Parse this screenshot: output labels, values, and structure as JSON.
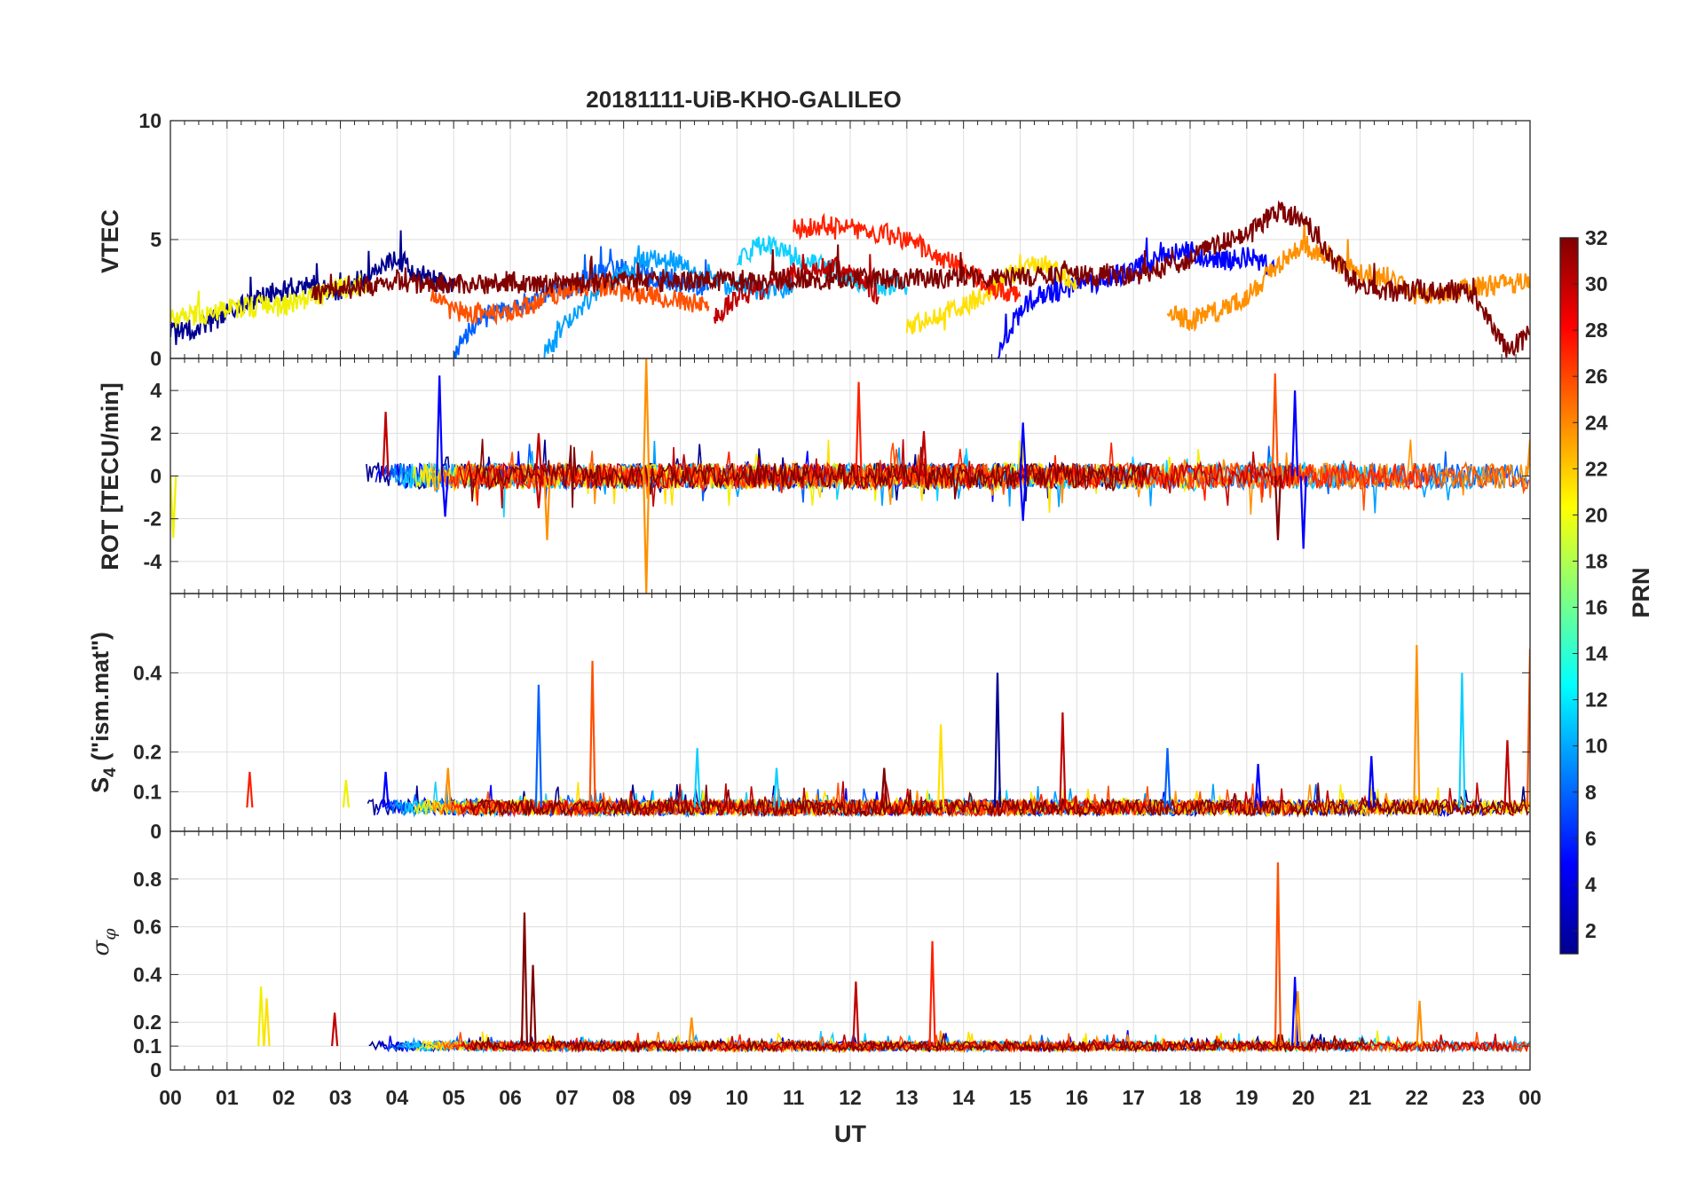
{
  "chart_data": {
    "type": "line",
    "title": "20181111-UiB-KHO-GALILEO",
    "xlabel": "UT",
    "x_tick_labels": [
      "00",
      "01",
      "02",
      "03",
      "04",
      "05",
      "06",
      "07",
      "08",
      "09",
      "10",
      "11",
      "12",
      "13",
      "14",
      "15",
      "16",
      "17",
      "18",
      "19",
      "20",
      "21",
      "22",
      "23",
      "00"
    ],
    "xlim": [
      0,
      24
    ],
    "grid": true,
    "panels": [
      {
        "ylabel": "VTEC",
        "ylim": [
          0,
          10
        ],
        "yticks": [
          0,
          5,
          10
        ],
        "series": [
          {
            "prn": 2,
            "color": "#00008f",
            "points": [
              [
                0,
                1.1
              ],
              [
                0.5,
                1.3
              ],
              [
                1,
                1.9
              ],
              [
                1.5,
                2.5
              ],
              [
                2,
                2.9
              ],
              [
                2.5,
                3.1
              ],
              [
                3,
                2.7
              ],
              [
                3.5,
                3.6
              ],
              [
                4,
                4.2
              ],
              [
                4.5,
                3.4
              ],
              [
                5,
                3.0
              ]
            ]
          },
          {
            "prn": 5,
            "color": "#0000ff",
            "points": [
              [
                14.6,
                0.1
              ],
              [
                14.9,
                1.6
              ],
              [
                15.2,
                2.5
              ],
              [
                15.6,
                2.8
              ],
              [
                16,
                3.1
              ],
              [
                16.5,
                3.3
              ],
              [
                17,
                3.7
              ],
              [
                17.5,
                4.3
              ],
              [
                18,
                4.5
              ],
              [
                18.5,
                4.1
              ],
              [
                19,
                4.3
              ],
              [
                19.5,
                3.8
              ]
            ]
          },
          {
            "prn": 8,
            "color": "#0060ff",
            "points": [
              [
                5,
                0.1
              ],
              [
                5.4,
                1.6
              ],
              [
                6,
                2.1
              ],
              [
                6.5,
                2.6
              ],
              [
                7,
                2.9
              ],
              [
                7.5,
                3.6
              ],
              [
                8,
                3.8
              ],
              [
                8.5,
                3.4
              ],
              [
                9,
                3.2
              ],
              [
                9.5,
                3.0
              ]
            ]
          },
          {
            "prn": 10,
            "color": "#00a0ff",
            "points": [
              [
                6.6,
                0.1
              ],
              [
                7,
                1.5
              ],
              [
                7.5,
                2.8
              ],
              [
                8,
                3.6
              ],
              [
                8.5,
                4.3
              ],
              [
                9,
                4.0
              ],
              [
                9.5,
                3.3
              ],
              [
                10,
                3.0
              ],
              [
                10.5,
                2.9
              ],
              [
                11,
                3.0
              ]
            ]
          },
          {
            "prn": 12,
            "color": "#10d0ff",
            "points": [
              [
                10,
                4.1
              ],
              [
                10.5,
                4.9
              ],
              [
                11,
                4.3
              ],
              [
                11.5,
                3.9
              ],
              [
                12,
                3.3
              ],
              [
                12.5,
                3.1
              ],
              [
                13,
                3.0
              ]
            ]
          },
          {
            "prn": 20,
            "color": "#f0f000",
            "points": [
              [
                0,
                1.6
              ],
              [
                0.5,
                1.8
              ],
              [
                1,
                2.1
              ],
              [
                1.5,
                2.2
              ],
              [
                2,
                2.2
              ],
              [
                2.5,
                2.6
              ],
              [
                3,
                3.0
              ],
              [
                3.5,
                3.1
              ]
            ]
          },
          {
            "prn": 21,
            "color": "#ffe000",
            "points": [
              [
                13,
                1.2
              ],
              [
                13.5,
                1.9
              ],
              [
                14,
                2.2
              ],
              [
                14.5,
                2.9
              ],
              [
                15,
                3.8
              ],
              [
                15.5,
                3.9
              ],
              [
                16,
                3.1
              ]
            ]
          },
          {
            "prn": 23,
            "color": "#ff9000",
            "points": [
              [
                17.6,
                2.0
              ],
              [
                18,
                1.6
              ],
              [
                18.5,
                2.0
              ],
              [
                19,
                2.6
              ],
              [
                19.5,
                3.8
              ],
              [
                20,
                4.8
              ],
              [
                20.5,
                4.1
              ],
              [
                21,
                3.6
              ],
              [
                21.5,
                3.4
              ],
              [
                22,
                2.6
              ],
              [
                22.5,
                2.7
              ],
              [
                23,
                3.0
              ],
              [
                23.5,
                3.1
              ],
              [
                24,
                3.2
              ]
            ]
          },
          {
            "prn": 25,
            "color": "#ff5000",
            "points": [
              [
                4.6,
                2.5
              ],
              [
                5,
                2.0
              ],
              [
                5.5,
                1.9
              ],
              [
                6,
                2.0
              ],
              [
                6.5,
                2.4
              ],
              [
                7,
                2.9
              ],
              [
                7.5,
                3.1
              ],
              [
                8,
                2.8
              ],
              [
                8.5,
                2.6
              ],
              [
                9,
                2.4
              ],
              [
                9.5,
                2.2
              ]
            ]
          },
          {
            "prn": 27,
            "color": "#ff2000",
            "points": [
              [
                11,
                5.4
              ],
              [
                11.5,
                5.6
              ],
              [
                12,
                5.5
              ],
              [
                12.5,
                5.3
              ],
              [
                13,
                5.0
              ],
              [
                13.5,
                4.4
              ],
              [
                14,
                3.8
              ],
              [
                14.5,
                3.0
              ],
              [
                15,
                2.6
              ]
            ]
          },
          {
            "prn": 30,
            "color": "#c00000",
            "points": [
              [
                9.6,
                1.8
              ],
              [
                10,
                2.5
              ],
              [
                10.5,
                3.0
              ],
              [
                11,
                3.6
              ],
              [
                11.5,
                3.9
              ],
              [
                12,
                3.7
              ],
              [
                12.5,
                2.6
              ]
            ]
          },
          {
            "prn": 32,
            "color": "#800000",
            "points": [
              [
                2.5,
                2.6
              ],
              [
                3,
                2.9
              ],
              [
                3.5,
                3.0
              ],
              [
                4,
                3.3
              ],
              [
                4.5,
                3.1
              ],
              [
                17,
                3.5
              ],
              [
                17.5,
                3.8
              ],
              [
                18,
                4.2
              ],
              [
                18.5,
                4.8
              ],
              [
                19,
                5.1
              ],
              [
                19.5,
                6.2
              ],
              [
                20,
                5.9
              ],
              [
                20.5,
                4.2
              ],
              [
                21,
                3.1
              ],
              [
                21.5,
                2.8
              ],
              [
                22,
                2.9
              ],
              [
                23,
                2.7
              ],
              [
                23.6,
                0.3
              ],
              [
                24,
                1.0
              ]
            ]
          }
        ]
      },
      {
        "ylabel": "ROT [TECU/min]",
        "ylim": [
          -5.5,
          5.5
        ],
        "yticks": [
          -4,
          -2,
          0,
          2,
          4
        ],
        "spikes": [
          {
            "t": 0.05,
            "v": -2.9,
            "color": "#f0f000"
          },
          {
            "t": 3.8,
            "v": 3.0,
            "color": "#c00000"
          },
          {
            "t": 4.75,
            "v": 4.7,
            "color": "#0000ff"
          },
          {
            "t": 4.85,
            "v": -1.9,
            "color": "#0000ff"
          },
          {
            "t": 6.5,
            "v": 2.0,
            "color": "#c00000"
          },
          {
            "t": 6.5,
            "v": -1.5,
            "color": "#c00000"
          },
          {
            "t": 6.65,
            "v": -3.0,
            "color": "#ff9000"
          },
          {
            "t": 8.4,
            "v": 5.5,
            "color": "#ff9000"
          },
          {
            "t": 8.4,
            "v": -5.5,
            "color": "#ff9000"
          },
          {
            "t": 12.15,
            "v": 4.4,
            "color": "#ff2000"
          },
          {
            "t": 13.3,
            "v": 2.1,
            "color": "#c00000"
          },
          {
            "t": 15.05,
            "v": 2.5,
            "color": "#0000ff"
          },
          {
            "t": 15.05,
            "v": -2.1,
            "color": "#0000ff"
          },
          {
            "t": 19.5,
            "v": 4.8,
            "color": "#ff5000"
          },
          {
            "t": 19.55,
            "v": -3.0,
            "color": "#800000"
          },
          {
            "t": 19.85,
            "v": 4.0,
            "color": "#0000ff"
          },
          {
            "t": 20.0,
            "v": -3.4,
            "color": "#0000ff"
          },
          {
            "t": 24.0,
            "v": 1.7,
            "color": "#ff9000"
          }
        ]
      },
      {
        "ylabel": "S4 (\"ism.mat\")",
        "ylabel_main": "S",
        "ylabel_sub": "4",
        "ylabel_rest": " (\"ism.mat\")",
        "ylim": [
          0,
          0.6
        ],
        "yticks": [
          0,
          0.1,
          0.2,
          0.4
        ],
        "spikes": [
          {
            "t": 1.4,
            "v": 0.15,
            "color": "#ff2000"
          },
          {
            "t": 3.1,
            "v": 0.13,
            "color": "#f0f000"
          },
          {
            "t": 3.8,
            "v": 0.15,
            "color": "#0000ff"
          },
          {
            "t": 4.9,
            "v": 0.16,
            "color": "#ff9000"
          },
          {
            "t": 6.5,
            "v": 0.37,
            "color": "#0060ff"
          },
          {
            "t": 7.45,
            "v": 0.43,
            "color": "#ff5000"
          },
          {
            "t": 9.3,
            "v": 0.21,
            "color": "#10d0ff"
          },
          {
            "t": 10.7,
            "v": 0.16,
            "color": "#10d0ff"
          },
          {
            "t": 12.6,
            "v": 0.16,
            "color": "#800000"
          },
          {
            "t": 13.6,
            "v": 0.27,
            "color": "#ffe000"
          },
          {
            "t": 14.6,
            "v": 0.4,
            "color": "#00008f"
          },
          {
            "t": 15.75,
            "v": 0.3,
            "color": "#c00000"
          },
          {
            "t": 17.6,
            "v": 0.21,
            "color": "#0060ff"
          },
          {
            "t": 19.2,
            "v": 0.17,
            "color": "#0000ff"
          },
          {
            "t": 21.2,
            "v": 0.19,
            "color": "#0000ff"
          },
          {
            "t": 22.0,
            "v": 0.47,
            "color": "#ff9000"
          },
          {
            "t": 22.8,
            "v": 0.4,
            "color": "#10d0ff"
          },
          {
            "t": 23.6,
            "v": 0.23,
            "color": "#c00000"
          },
          {
            "t": 24.0,
            "v": 0.46,
            "color": "#ff5000"
          }
        ]
      },
      {
        "ylabel": "σφ",
        "ylabel_main": "σ",
        "ylabel_sub": "φ",
        "ylim": [
          0,
          1
        ],
        "yticks": [
          0,
          0.1,
          0.2,
          0.4,
          0.6,
          0.8
        ],
        "spikes": [
          {
            "t": 1.6,
            "v": 0.35,
            "color": "#f0f000"
          },
          {
            "t": 1.7,
            "v": 0.3,
            "color": "#ffe000"
          },
          {
            "t": 2.9,
            "v": 0.24,
            "color": "#c00000"
          },
          {
            "t": 6.25,
            "v": 0.66,
            "color": "#800000"
          },
          {
            "t": 6.4,
            "v": 0.44,
            "color": "#800000"
          },
          {
            "t": 9.2,
            "v": 0.22,
            "color": "#ff9000"
          },
          {
            "t": 12.1,
            "v": 0.37,
            "color": "#c00000"
          },
          {
            "t": 13.45,
            "v": 0.54,
            "color": "#ff2000"
          },
          {
            "t": 19.55,
            "v": 0.87,
            "color": "#ff5000"
          },
          {
            "t": 19.85,
            "v": 0.39,
            "color": "#0000ff"
          },
          {
            "t": 19.9,
            "v": 0.33,
            "color": "#ff9000"
          },
          {
            "t": 22.05,
            "v": 0.29,
            "color": "#ff9000"
          }
        ]
      }
    ],
    "colorbar": {
      "label": "PRN",
      "range": [
        1,
        32
      ],
      "ticks": [
        2,
        4,
        6,
        8,
        10,
        12,
        14,
        16,
        18,
        20,
        22,
        24,
        26,
        28,
        30,
        32
      ],
      "colormap": "jet"
    }
  }
}
